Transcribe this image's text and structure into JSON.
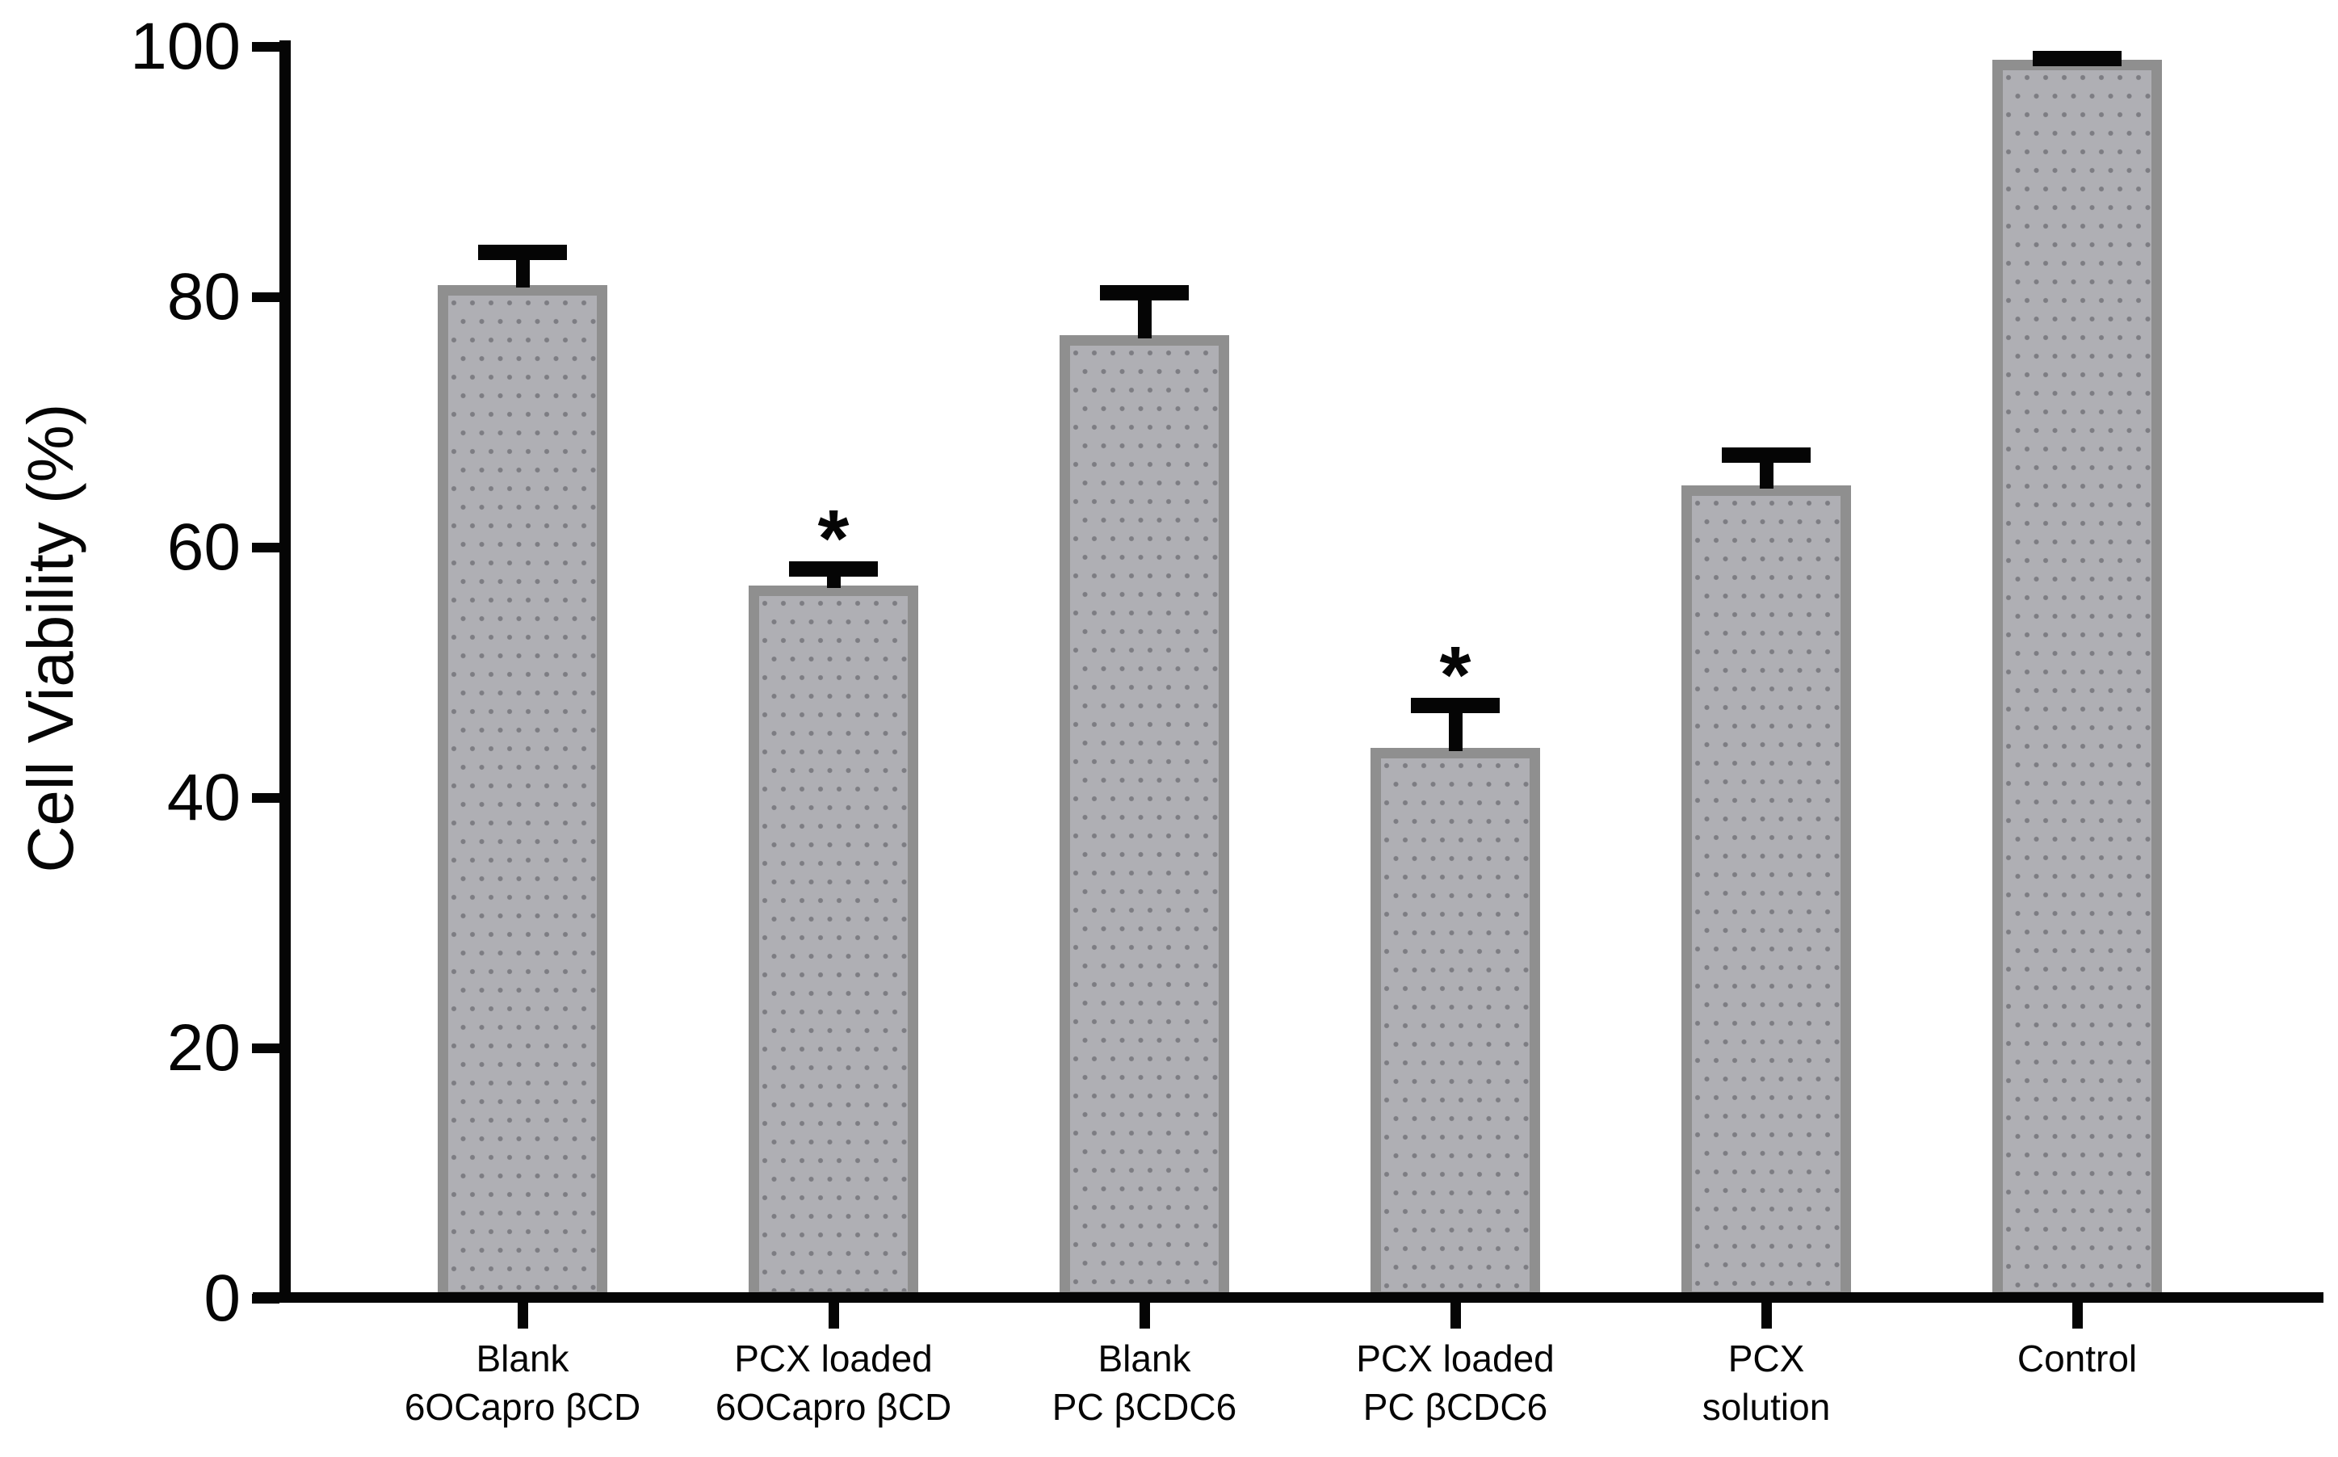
{
  "chart_data": {
    "type": "bar",
    "title": "",
    "xlabel": "",
    "ylabel": "Cell Viability (%)",
    "ylim": [
      0,
      100
    ],
    "yticks": [
      0,
      20,
      40,
      60,
      80,
      100
    ],
    "grid": false,
    "legend": false,
    "significance_marker": "*",
    "categories": [
      "Blank 6OCapro βCD",
      "PCX loaded 6OCapro βCD",
      "Blank PC βCDC6",
      "PCX loaded PC βCDC6",
      "PCX solution",
      "Control"
    ],
    "bars": [
      {
        "label_lines": [
          "Blank",
          "6OCapro βCD"
        ],
        "value": 81,
        "error": 3.2,
        "significant": false
      },
      {
        "label_lines": [
          "PCX loaded",
          "6OCapro βCD"
        ],
        "value": 57,
        "error": 1.9,
        "significant": true
      },
      {
        "label_lines": [
          "Blank",
          "PC βCDC6"
        ],
        "value": 77,
        "error": 4.0,
        "significant": false
      },
      {
        "label_lines": [
          "PCX loaded",
          "PC βCDC6"
        ],
        "value": 44,
        "error": 4.0,
        "significant": true
      },
      {
        "label_lines": [
          "PCX",
          "solution"
        ],
        "value": 65,
        "error": 3.0,
        "significant": false
      },
      {
        "label_lines": [
          "Control"
        ],
        "value": 99,
        "error": 0.7,
        "significant": false
      }
    ],
    "colors": {
      "bar_fill": "#afafb4",
      "bar_border": "#8f8f8f",
      "bar_dots": "#7d7d83",
      "axis": "#050505",
      "background": "#ffffff"
    }
  }
}
